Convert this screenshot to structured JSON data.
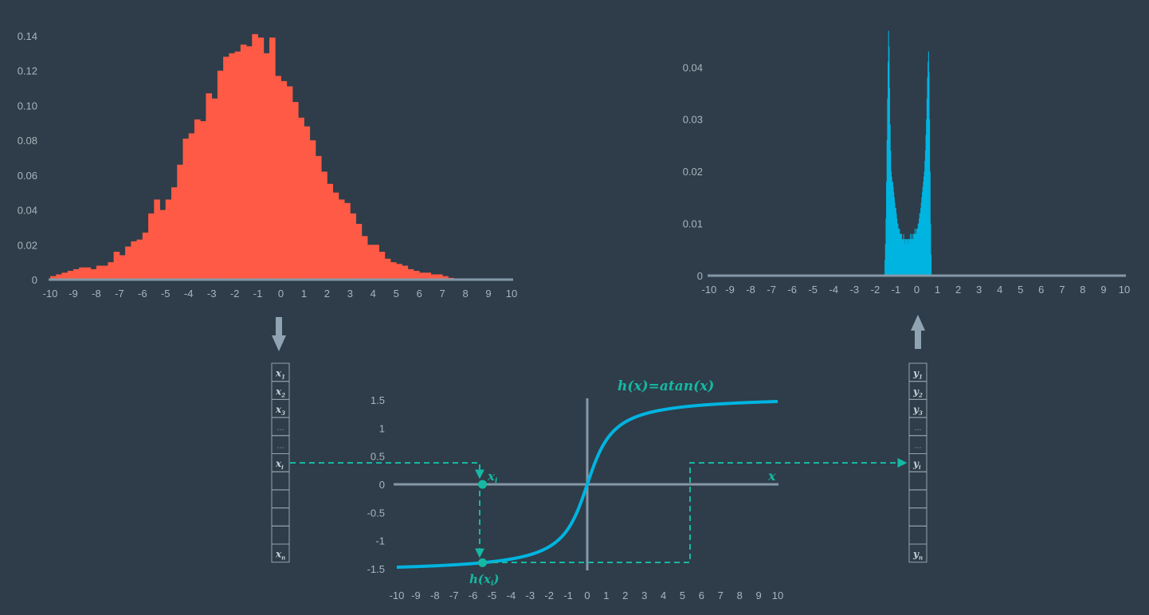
{
  "colors": {
    "background": "#2e3d49",
    "input_hist": "#ff5a45",
    "output_hist": "#00b4e1",
    "curve": "#00b4e1",
    "axis": "#8598a8",
    "annotation": "#16b8a4",
    "arrow": "#8fa3b3"
  },
  "chart_data": [
    {
      "type": "bar",
      "role": "input distribution histogram",
      "xlim": [
        -10,
        10
      ],
      "ylim": [
        0,
        0.14
      ],
      "x_ticks": [
        "-10",
        "-9",
        "-8",
        "-7",
        "-6",
        "-5",
        "-4",
        "-3",
        "-2",
        "-1",
        "0",
        "1",
        "2",
        "3",
        "4",
        "5",
        "6",
        "7",
        "8",
        "9",
        "10"
      ],
      "y_ticks": [
        "0",
        "0.02",
        "0.04",
        "0.06",
        "0.08",
        "0.10",
        "0.12",
        "0.14"
      ],
      "bin_width": 0.25,
      "bin_start": -10,
      "values": [
        0.002,
        0.003,
        0.004,
        0.005,
        0.006,
        0.007,
        0.007,
        0.006,
        0.008,
        0.008,
        0.01,
        0.016,
        0.014,
        0.019,
        0.022,
        0.023,
        0.027,
        0.038,
        0.046,
        0.04,
        0.046,
        0.053,
        0.066,
        0.081,
        0.084,
        0.092,
        0.091,
        0.107,
        0.104,
        0.12,
        0.128,
        0.13,
        0.131,
        0.135,
        0.134,
        0.141,
        0.139,
        0.13,
        0.139,
        0.117,
        0.114,
        0.111,
        0.102,
        0.093,
        0.088,
        0.08,
        0.071,
        0.062,
        0.055,
        0.05,
        0.046,
        0.044,
        0.038,
        0.032,
        0.025,
        0.02,
        0.02,
        0.016,
        0.012,
        0.01,
        0.009,
        0.008,
        0.006,
        0.005,
        0.004,
        0.004,
        0.003,
        0.003,
        0.002,
        0.001
      ]
    },
    {
      "type": "bar",
      "role": "output distribution histogram",
      "xlim": [
        -10,
        10
      ],
      "ylim": [
        0,
        0.047
      ],
      "x_ticks": [
        "-10",
        "-9",
        "-8",
        "-7",
        "-6",
        "-5",
        "-4",
        "-3",
        "-2",
        "-1",
        "0",
        "1",
        "2",
        "3",
        "4",
        "5",
        "6",
        "7",
        "8",
        "9",
        "10"
      ],
      "y_ticks": [
        "0",
        "0.01",
        "0.02",
        "0.03",
        "0.04"
      ],
      "bin_width": 0.025,
      "bin_start": -1.55,
      "values": [
        0.003,
        0.006,
        0.011,
        0.018,
        0.026,
        0.034,
        0.041,
        0.047,
        0.044,
        0.036,
        0.029,
        0.024,
        0.02,
        0.019,
        0.018,
        0.018,
        0.017,
        0.016,
        0.015,
        0.014,
        0.013,
        0.013,
        0.012,
        0.011,
        0.01,
        0.01,
        0.009,
        0.009,
        0.009,
        0.008,
        0.008,
        0.008,
        0.008,
        0.007,
        0.007,
        0.007,
        0.008,
        0.007,
        0.006,
        0.007,
        0.007,
        0.007,
        0.007,
        0.007,
        0.006,
        0.007,
        0.007,
        0.007,
        0.007,
        0.008,
        0.007,
        0.007,
        0.008,
        0.007,
        0.007,
        0.008,
        0.008,
        0.008,
        0.009,
        0.008,
        0.008,
        0.009,
        0.009,
        0.009,
        0.01,
        0.01,
        0.011,
        0.012,
        0.012,
        0.013,
        0.014,
        0.015,
        0.016,
        0.017,
        0.018,
        0.019,
        0.02,
        0.022,
        0.024,
        0.027,
        0.03,
        0.034,
        0.038,
        0.041,
        0.043,
        0.039,
        0.03,
        0.02,
        0.01,
        0.004
      ]
    },
    {
      "type": "line",
      "role": "transfer function",
      "title": "h(x)=atan(x)",
      "function": "atan",
      "xlim": [
        -10,
        10
      ],
      "ylim": [
        -1.5,
        1.5
      ],
      "x_ticks": [
        "-10",
        "-9",
        "-8",
        "-7",
        "-6",
        "-5",
        "-4",
        "-3",
        "-2",
        "-1",
        "0",
        "1",
        "2",
        "3",
        "4",
        "5",
        "6",
        "7",
        "8",
        "9",
        "10"
      ],
      "y_ticks": [
        "1.5",
        "1",
        "0.5",
        "0",
        "-0.5",
        "-1",
        "-1.5"
      ],
      "x_axis_label": "x",
      "sample_x": -5.5,
      "sample_x_label": "x",
      "sample_x_sub": "i",
      "sample_y_label": "h(x",
      "sample_y_sub": "i",
      "sample_y_close": ")",
      "output_x": 5.5
    }
  ],
  "input_vector": {
    "cells": [
      {
        "base": "x",
        "sub": "1"
      },
      {
        "base": "x",
        "sub": "2"
      },
      {
        "base": "x",
        "sub": "3"
      },
      {
        "base": "...",
        "sub": ""
      },
      {
        "base": "...",
        "sub": ""
      },
      {
        "base": "x",
        "sub": "i"
      },
      {
        "base": "",
        "sub": ""
      },
      {
        "base": "",
        "sub": ""
      },
      {
        "base": "",
        "sub": ""
      },
      {
        "base": "",
        "sub": ""
      },
      {
        "base": "x",
        "sub": "n"
      }
    ]
  },
  "output_vector": {
    "cells": [
      {
        "base": "y",
        "sub": "1"
      },
      {
        "base": "y",
        "sub": "2"
      },
      {
        "base": "y",
        "sub": "3"
      },
      {
        "base": "...",
        "sub": ""
      },
      {
        "base": "...",
        "sub": ""
      },
      {
        "base": "y",
        "sub": "i"
      },
      {
        "base": "",
        "sub": ""
      },
      {
        "base": "",
        "sub": ""
      },
      {
        "base": "",
        "sub": ""
      },
      {
        "base": "",
        "sub": ""
      },
      {
        "base": "y",
        "sub": "n"
      }
    ]
  }
}
